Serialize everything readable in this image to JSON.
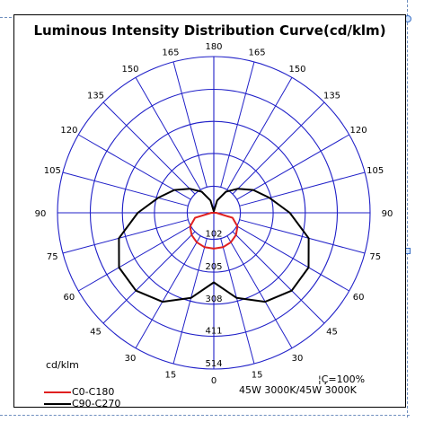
{
  "chart_data": {
    "type": "polar",
    "title": "Luminous Intensity Distribution Curve(cd/klm)",
    "unit_label": "cd/klm",
    "angle_labels_left": [
      "180",
      "165",
      "150",
      "135",
      "120",
      "105",
      "90",
      "75",
      "60",
      "45",
      "30",
      "15",
      "0"
    ],
    "angle_labels_right": [
      "165",
      "150",
      "135",
      "120",
      "105",
      "90",
      "75",
      "60",
      "45",
      "30",
      "15"
    ],
    "radial_tick_labels": [
      "102",
      "205",
      "308",
      "411",
      "514"
    ],
    "radial_max": 514,
    "series": [
      {
        "name": "C0-C180",
        "color": "#e02020",
        "points": [
          [
            0,
            118
          ],
          [
            15,
            117
          ],
          [
            30,
            112
          ],
          [
            45,
            103
          ],
          [
            60,
            90
          ],
          [
            75,
            64
          ],
          [
            90,
            8
          ],
          [
            105,
            0
          ],
          [
            120,
            0
          ],
          [
            135,
            0
          ],
          [
            150,
            0
          ],
          [
            165,
            0
          ],
          [
            180,
            0
          ]
        ]
      },
      {
        "name": "C90-C270",
        "color": "#000000",
        "points": [
          [
            0,
            229
          ],
          [
            15,
            290
          ],
          [
            30,
            338
          ],
          [
            45,
            362
          ],
          [
            60,
            360
          ],
          [
            75,
            323
          ],
          [
            90,
            250
          ],
          [
            105,
            190
          ],
          [
            120,
            150
          ],
          [
            135,
            112
          ],
          [
            150,
            80
          ],
          [
            165,
            42
          ],
          [
            180,
            5
          ]
        ]
      }
    ],
    "notes": [
      "¦Ç=100%",
      "45W 3000K/45W 3000K"
    ],
    "colors": {
      "grid": "#2020c8",
      "frame": "#000000",
      "selection": "#3a6fc4"
    }
  }
}
